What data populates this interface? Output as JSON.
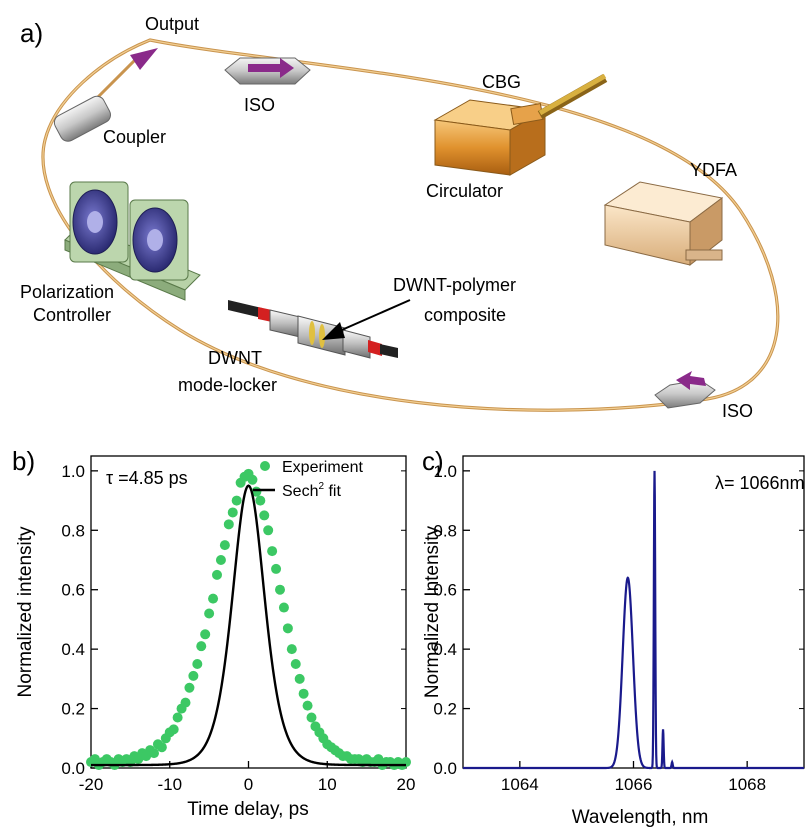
{
  "panel_labels": {
    "a": "a)",
    "b": "b)",
    "c": "c)"
  },
  "setup": {
    "output": "Output",
    "iso_top": "ISO",
    "coupler": "Coupler",
    "cbg": "CBG",
    "circulator": "Circulator",
    "ydfa": "YDFA",
    "pc_line1": "Polarization",
    "pc_line2": "Controller",
    "dwnt_poly_line1": "DWNT-polymer",
    "dwnt_poly_line2": "composite",
    "dwnt_ml_line1": "DWNT",
    "dwnt_ml_line2": "mode-locker",
    "iso_bottom": "ISO",
    "colors": {
      "fiber": "#d7a35a",
      "iso": "#9a9a9a",
      "arrow": "#8a2a8a",
      "circulator": "#e0922e",
      "ydfa": "#f0d2a8",
      "pc": "#a9c79a",
      "paddle": "#3a3a8a",
      "connector_red": "#d42020"
    }
  },
  "chart_data": [
    {
      "type": "scatter",
      "panel": "b",
      "xlabel": "Time delay, ps",
      "ylabel": "Normalized intensity",
      "xlim": [
        -20,
        20
      ],
      "ylim": [
        0,
        1.05
      ],
      "xticks": [
        "-20",
        "-10",
        "0",
        "10",
        "20"
      ],
      "yticks": [
        "0.0",
        "0.2",
        "0.4",
        "0.6",
        "0.8",
        "1.0"
      ],
      "annotation": "τ =4.85 ps",
      "legend": {
        "placement": "top-right",
        "experiment": "Experiment",
        "fit": "Sech",
        "fit_sup": "2",
        "fit_suffix": " fit"
      },
      "colors": {
        "experiment": "#3cc864",
        "fit": "#000000"
      },
      "series": [
        {
          "name": "Experiment",
          "x": [
            -20,
            -19.5,
            -19,
            -18.5,
            -18,
            -17.5,
            -17,
            -16.5,
            -16,
            -15.5,
            -15,
            -14.5,
            -14,
            -13.5,
            -13,
            -12.5,
            -12,
            -11.5,
            -11,
            -10.5,
            -10,
            -9.5,
            -9,
            -8.5,
            -8,
            -7.5,
            -7,
            -6.5,
            -6,
            -5.5,
            -5,
            -4.5,
            -4,
            -3.5,
            -3,
            -2.5,
            -2,
            -1.5,
            -1,
            -0.5,
            0,
            0.5,
            1,
            1.5,
            2,
            2.5,
            3,
            3.5,
            4,
            4.5,
            5,
            5.5,
            6,
            6.5,
            7,
            7.5,
            8,
            8.5,
            9,
            9.5,
            10,
            10.5,
            11,
            11.5,
            12,
            12.5,
            13,
            13.5,
            14,
            14.5,
            15,
            15.5,
            16,
            16.5,
            17,
            17.5,
            18,
            18.5,
            19,
            19.5,
            20
          ],
          "y": [
            0.02,
            0.03,
            0.01,
            0.02,
            0.03,
            0.02,
            0.01,
            0.03,
            0.02,
            0.03,
            0.02,
            0.04,
            0.03,
            0.05,
            0.04,
            0.06,
            0.05,
            0.08,
            0.07,
            0.1,
            0.12,
            0.13,
            0.17,
            0.2,
            0.22,
            0.27,
            0.31,
            0.35,
            0.41,
            0.45,
            0.52,
            0.57,
            0.65,
            0.7,
            0.75,
            0.82,
            0.86,
            0.9,
            0.96,
            0.98,
            0.99,
            0.97,
            0.93,
            0.9,
            0.85,
            0.8,
            0.73,
            0.67,
            0.6,
            0.54,
            0.47,
            0.4,
            0.35,
            0.3,
            0.25,
            0.21,
            0.17,
            0.14,
            0.12,
            0.1,
            0.08,
            0.07,
            0.06,
            0.05,
            0.04,
            0.04,
            0.03,
            0.03,
            0.03,
            0.02,
            0.03,
            0.02,
            0.02,
            0.03,
            0.01,
            0.02,
            0.02,
            0.01,
            0.02,
            0.01,
            0.02
          ]
        },
        {
          "name": "Sech² fit",
          "amplitude": 0.95,
          "center": 0,
          "fwhm_ps": 4.85,
          "baseline": 0.01
        }
      ]
    },
    {
      "type": "line",
      "panel": "c",
      "xlabel": "Wavelength, nm",
      "ylabel": "Normalized Intensity",
      "xlim": [
        1063,
        1069
      ],
      "ylim": [
        0,
        1.05
      ],
      "xticks": [
        "1064",
        "1066",
        "1068"
      ],
      "yticks": [
        "0.0",
        "0.2",
        "0.4",
        "0.6",
        "0.8",
        "1.0"
      ],
      "annotation": "λ= 1066nm",
      "colors": {
        "line": "#1a1a8c"
      },
      "peaks": [
        {
          "center": 1065.9,
          "height": 0.64,
          "width": 0.09
        },
        {
          "center": 1066.37,
          "height": 1.0,
          "width": 0.012
        },
        {
          "center": 1066.52,
          "height": 0.13,
          "width": 0.01
        },
        {
          "center": 1066.68,
          "height": 0.02,
          "width": 0.01
        }
      ]
    }
  ]
}
